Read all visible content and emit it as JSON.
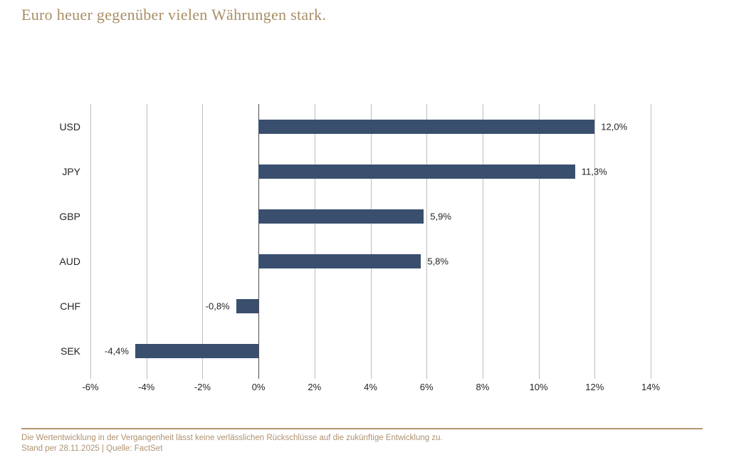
{
  "title": "Euro heuer gegenüber vielen Währungen stark.",
  "colors": {
    "accent": "#A98E66",
    "bar": "#3A4F6E",
    "grid": "#BDBDBD",
    "zero_line": "#4D4D4D",
    "text": "#262626",
    "footer_text": "#AE9271",
    "footer_rule": "#B49770"
  },
  "chart_data": {
    "type": "bar",
    "orientation": "horizontal",
    "title": "Euro heuer gegenüber vielen Währungen stark.",
    "categories": [
      "USD",
      "JPY",
      "GBP",
      "AUD",
      "CHF",
      "SEK"
    ],
    "values": [
      12.0,
      11.3,
      5.9,
      5.8,
      -0.8,
      -4.4
    ],
    "value_labels": [
      "12,0%",
      "11,3%",
      "5,9%",
      "5,8%",
      "-0,8%",
      "-4,4%"
    ],
    "xlim": [
      -6,
      14
    ],
    "x_ticks": [
      -6,
      -4,
      -2,
      0,
      2,
      4,
      6,
      8,
      10,
      12,
      14
    ],
    "x_tick_labels": [
      "-6%",
      "-4%",
      "-2%",
      "0%",
      "2%",
      "4%",
      "6%",
      "8%",
      "10%",
      "12%",
      "14%"
    ],
    "grid": true,
    "legend": false
  },
  "footer": {
    "disclaimer": "Die Wertentwicklung in der Vergangenheit lässt keine verlässlichen Rückschlüsse auf die zukünftige Entwicklung zu.",
    "source": "Stand per 28.11.2025  |  Quelle: FactSet"
  }
}
